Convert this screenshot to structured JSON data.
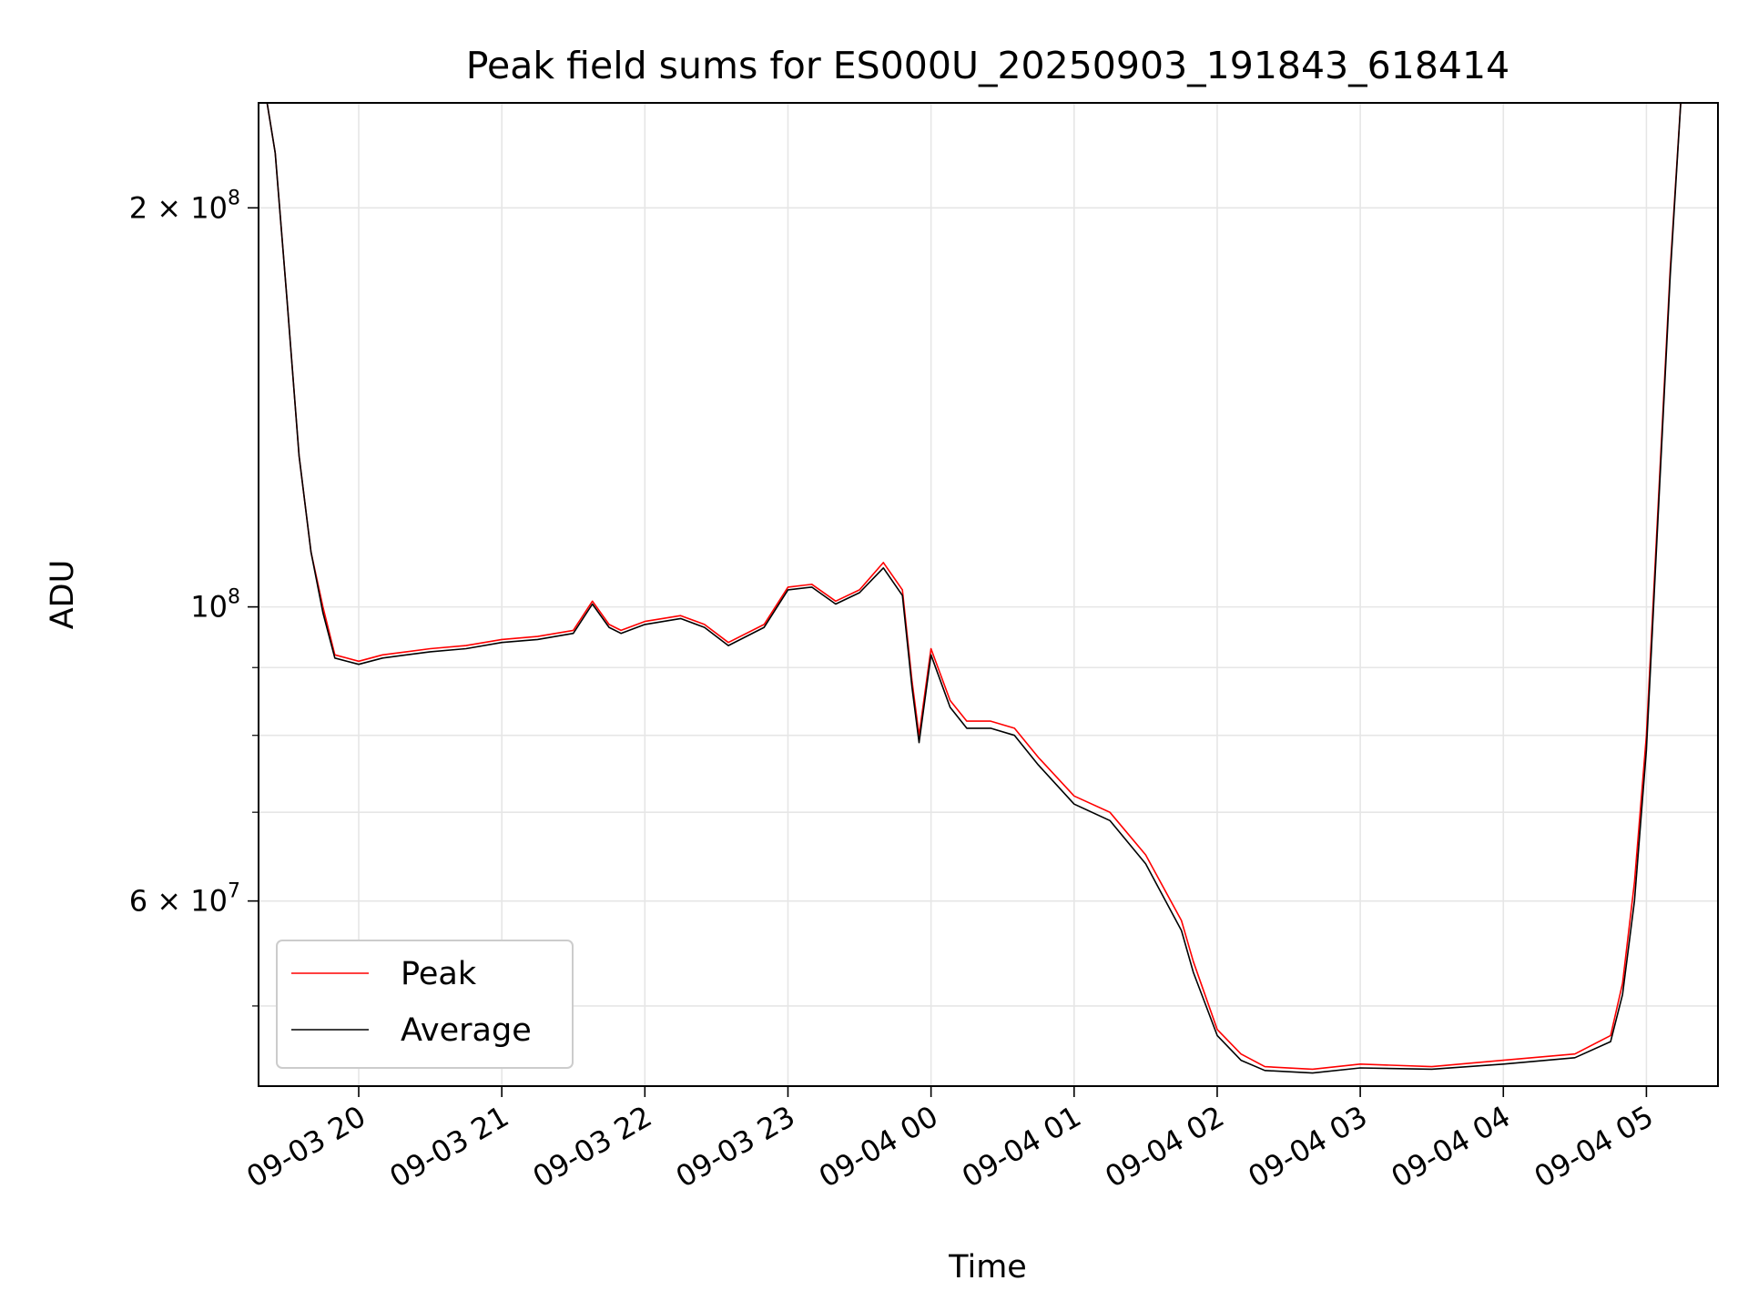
{
  "chart_data": {
    "type": "line",
    "title": "Peak field sums for ES000U_20250903_191843_618414",
    "xlabel": "Time",
    "ylabel": "ADU",
    "yscale": "log",
    "grid": true,
    "legend_placement": "lower-left",
    "xlim": [
      "2025-09-03T19:18",
      "2025-09-04T05:30"
    ],
    "ylim": [
      43500000,
      240000000
    ],
    "x_ticks": [
      {
        "t": "2025-09-03T20:00",
        "label": "09-03 20"
      },
      {
        "t": "2025-09-03T21:00",
        "label": "09-03 21"
      },
      {
        "t": "2025-09-03T22:00",
        "label": "09-03 22"
      },
      {
        "t": "2025-09-03T23:00",
        "label": "09-03 23"
      },
      {
        "t": "2025-09-04T00:00",
        "label": "09-04 00"
      },
      {
        "t": "2025-09-04T01:00",
        "label": "09-04 01"
      },
      {
        "t": "2025-09-04T02:00",
        "label": "09-04 02"
      },
      {
        "t": "2025-09-04T03:00",
        "label": "09-04 03"
      },
      {
        "t": "2025-09-04T04:00",
        "label": "09-04 04"
      },
      {
        "t": "2025-09-04T05:00",
        "label": "09-04 05"
      }
    ],
    "y_ticks": [
      {
        "value": 200000000,
        "base": "2 × 10",
        "exp": "8"
      },
      {
        "value": 100000000,
        "base": "10",
        "exp": "8"
      },
      {
        "value": 60000000,
        "base": "6 × 10",
        "exp": "7"
      }
    ],
    "y_minor_ticks": [
      50000000,
      70000000,
      80000000,
      90000000
    ],
    "series": [
      {
        "name": "Peak",
        "color": "#ff0000",
        "points": [
          [
            "2025-09-03T19:20",
            250000000
          ],
          [
            "2025-09-03T19:25",
            220000000
          ],
          [
            "2025-09-03T19:30",
            170000000
          ],
          [
            "2025-09-03T19:35",
            130000000
          ],
          [
            "2025-09-03T19:40",
            110000000
          ],
          [
            "2025-09-03T19:45",
            100000000
          ],
          [
            "2025-09-03T19:50",
            92000000
          ],
          [
            "2025-09-03T20:00",
            91000000
          ],
          [
            "2025-09-03T20:10",
            92000000
          ],
          [
            "2025-09-03T20:20",
            92500000
          ],
          [
            "2025-09-03T20:30",
            93000000
          ],
          [
            "2025-09-03T20:45",
            93500000
          ],
          [
            "2025-09-03T21:00",
            94500000
          ],
          [
            "2025-09-03T21:15",
            95000000
          ],
          [
            "2025-09-03T21:30",
            96000000
          ],
          [
            "2025-09-03T21:38",
            101000000
          ],
          [
            "2025-09-03T21:45",
            97000000
          ],
          [
            "2025-09-03T21:50",
            96000000
          ],
          [
            "2025-09-03T22:00",
            97500000
          ],
          [
            "2025-09-03T22:15",
            98500000
          ],
          [
            "2025-09-03T22:25",
            97000000
          ],
          [
            "2025-09-03T22:35",
            94000000
          ],
          [
            "2025-09-03T22:50",
            97000000
          ],
          [
            "2025-09-03T23:00",
            103500000
          ],
          [
            "2025-09-03T23:10",
            104000000
          ],
          [
            "2025-09-03T23:20",
            101000000
          ],
          [
            "2025-09-03T23:30",
            103000000
          ],
          [
            "2025-09-03T23:40",
            108000000
          ],
          [
            "2025-09-03T23:48",
            103000000
          ],
          [
            "2025-09-03T23:52",
            88000000
          ],
          [
            "2025-09-03T23:55",
            80000000
          ],
          [
            "2025-09-04T00:00",
            93000000
          ],
          [
            "2025-09-04T00:08",
            85000000
          ],
          [
            "2025-09-04T00:15",
            82000000
          ],
          [
            "2025-09-04T00:25",
            82000000
          ],
          [
            "2025-09-04T00:35",
            81000000
          ],
          [
            "2025-09-04T00:45",
            77000000
          ],
          [
            "2025-09-04T01:00",
            72000000
          ],
          [
            "2025-09-04T01:15",
            70000000
          ],
          [
            "2025-09-04T01:30",
            65000000
          ],
          [
            "2025-09-04T01:45",
            58000000
          ],
          [
            "2025-09-04T01:50",
            54000000
          ],
          [
            "2025-09-04T02:00",
            48000000
          ],
          [
            "2025-09-04T02:10",
            46000000
          ],
          [
            "2025-09-04T02:20",
            45000000
          ],
          [
            "2025-09-04T02:40",
            44800000
          ],
          [
            "2025-09-04T03:00",
            45200000
          ],
          [
            "2025-09-04T03:30",
            45000000
          ],
          [
            "2025-09-04T04:00",
            45500000
          ],
          [
            "2025-09-04T04:30",
            46000000
          ],
          [
            "2025-09-04T04:45",
            47500000
          ],
          [
            "2025-09-04T04:50",
            52000000
          ],
          [
            "2025-09-04T04:55",
            62000000
          ],
          [
            "2025-09-04T05:00",
            80000000
          ],
          [
            "2025-09-04T05:05",
            120000000
          ],
          [
            "2025-09-04T05:10",
            180000000
          ],
          [
            "2025-09-04T05:15",
            250000000
          ]
        ]
      },
      {
        "name": "Average",
        "color": "#000000",
        "points": [
          [
            "2025-09-03T19:20",
            250000000
          ],
          [
            "2025-09-03T19:25",
            220000000
          ],
          [
            "2025-09-03T19:30",
            170000000
          ],
          [
            "2025-09-03T19:35",
            130000000
          ],
          [
            "2025-09-03T19:40",
            110000000
          ],
          [
            "2025-09-03T19:45",
            99000000
          ],
          [
            "2025-09-03T19:50",
            91500000
          ],
          [
            "2025-09-03T20:00",
            90500000
          ],
          [
            "2025-09-03T20:10",
            91500000
          ],
          [
            "2025-09-03T20:20",
            92000000
          ],
          [
            "2025-09-03T20:30",
            92500000
          ],
          [
            "2025-09-03T20:45",
            93000000
          ],
          [
            "2025-09-03T21:00",
            94000000
          ],
          [
            "2025-09-03T21:15",
            94500000
          ],
          [
            "2025-09-03T21:30",
            95500000
          ],
          [
            "2025-09-03T21:38",
            100500000
          ],
          [
            "2025-09-03T21:45",
            96500000
          ],
          [
            "2025-09-03T21:50",
            95500000
          ],
          [
            "2025-09-03T22:00",
            97000000
          ],
          [
            "2025-09-03T22:15",
            98000000
          ],
          [
            "2025-09-03T22:25",
            96500000
          ],
          [
            "2025-09-03T22:35",
            93500000
          ],
          [
            "2025-09-03T22:50",
            96500000
          ],
          [
            "2025-09-03T23:00",
            103000000
          ],
          [
            "2025-09-03T23:10",
            103500000
          ],
          [
            "2025-09-03T23:20",
            100500000
          ],
          [
            "2025-09-03T23:30",
            102500000
          ],
          [
            "2025-09-03T23:40",
            107000000
          ],
          [
            "2025-09-03T23:48",
            102000000
          ],
          [
            "2025-09-03T23:52",
            87000000
          ],
          [
            "2025-09-03T23:55",
            79000000
          ],
          [
            "2025-09-04T00:00",
            92000000
          ],
          [
            "2025-09-04T00:08",
            84000000
          ],
          [
            "2025-09-04T00:15",
            81000000
          ],
          [
            "2025-09-04T00:25",
            81000000
          ],
          [
            "2025-09-04T00:35",
            80000000
          ],
          [
            "2025-09-04T00:45",
            76000000
          ],
          [
            "2025-09-04T01:00",
            71000000
          ],
          [
            "2025-09-04T01:15",
            69000000
          ],
          [
            "2025-09-04T01:30",
            64000000
          ],
          [
            "2025-09-04T01:45",
            57000000
          ],
          [
            "2025-09-04T01:50",
            53000000
          ],
          [
            "2025-09-04T02:00",
            47500000
          ],
          [
            "2025-09-04T02:10",
            45500000
          ],
          [
            "2025-09-04T02:20",
            44700000
          ],
          [
            "2025-09-04T02:40",
            44500000
          ],
          [
            "2025-09-04T03:00",
            44900000
          ],
          [
            "2025-09-04T03:30",
            44800000
          ],
          [
            "2025-09-04T04:00",
            45200000
          ],
          [
            "2025-09-04T04:30",
            45700000
          ],
          [
            "2025-09-04T04:45",
            47000000
          ],
          [
            "2025-09-04T04:50",
            51000000
          ],
          [
            "2025-09-04T04:55",
            60000000
          ],
          [
            "2025-09-04T05:00",
            78000000
          ],
          [
            "2025-09-04T05:05",
            118000000
          ],
          [
            "2025-09-04T05:10",
            178000000
          ],
          [
            "2025-09-04T05:15",
            250000000
          ]
        ]
      }
    ]
  }
}
